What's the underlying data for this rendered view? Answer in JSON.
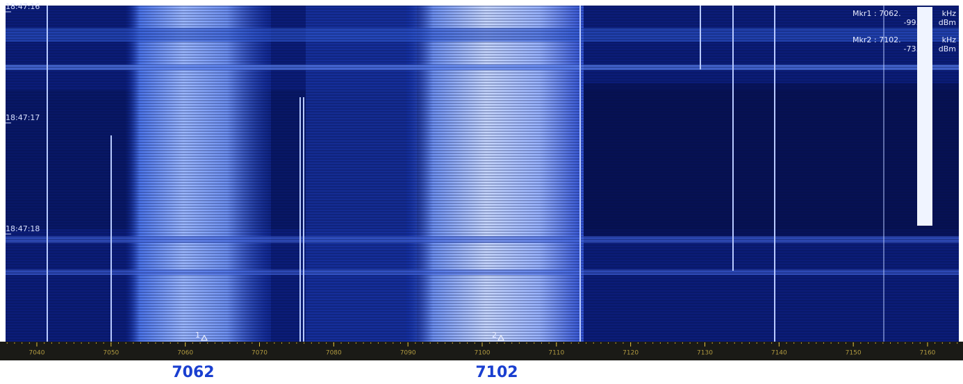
{
  "waterfall": {
    "time_labels": [
      "18:47:16",
      "18:47:17",
      "18:47:18"
    ]
  },
  "markers": [
    {
      "id": "1",
      "readout": "Mkr1 : 7062.",
      "freq_unit": "kHz",
      "level": "-99.",
      "level_unit": "dBm"
    },
    {
      "id": "2",
      "readout": "Mkr2 : 7102.",
      "freq_unit": "kHz",
      "level": "-73.",
      "level_unit": "dBm"
    }
  ],
  "axis": {
    "ticks": [
      7040,
      7050,
      7060,
      7070,
      7080,
      7090,
      7100,
      7110,
      7120,
      7130,
      7140,
      7150,
      7160
    ]
  },
  "footer_labels": [
    "7062",
    "7102"
  ]
}
